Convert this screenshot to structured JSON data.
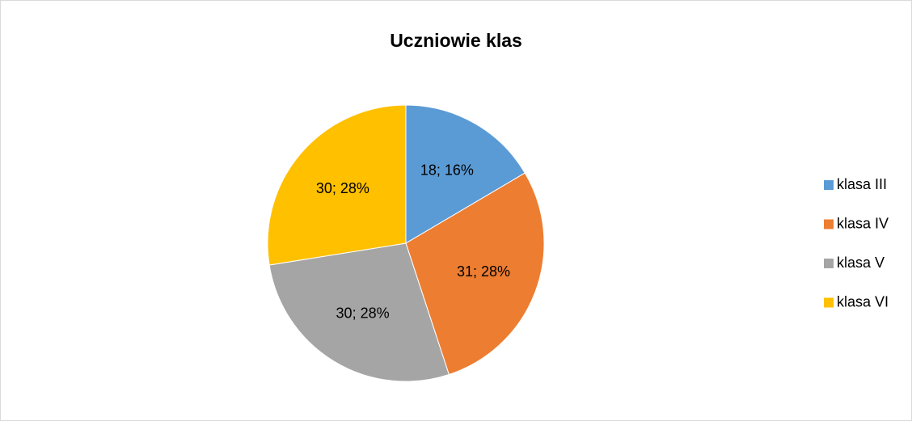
{
  "chart_data": {
    "type": "pie",
    "title": "Uczniowie klas",
    "categories": [
      "klasa III",
      "klasa IV",
      "klasa V",
      "klasa VI"
    ],
    "values": [
      18,
      31,
      30,
      30
    ],
    "value_labels": [
      "18; 16%",
      "31; 28%",
      "30; 28%",
      "30; 28%"
    ],
    "colors": [
      "#5b9bd5",
      "#ed7d31",
      "#a5a5a5",
      "#ffc000"
    ],
    "legend": "right"
  }
}
